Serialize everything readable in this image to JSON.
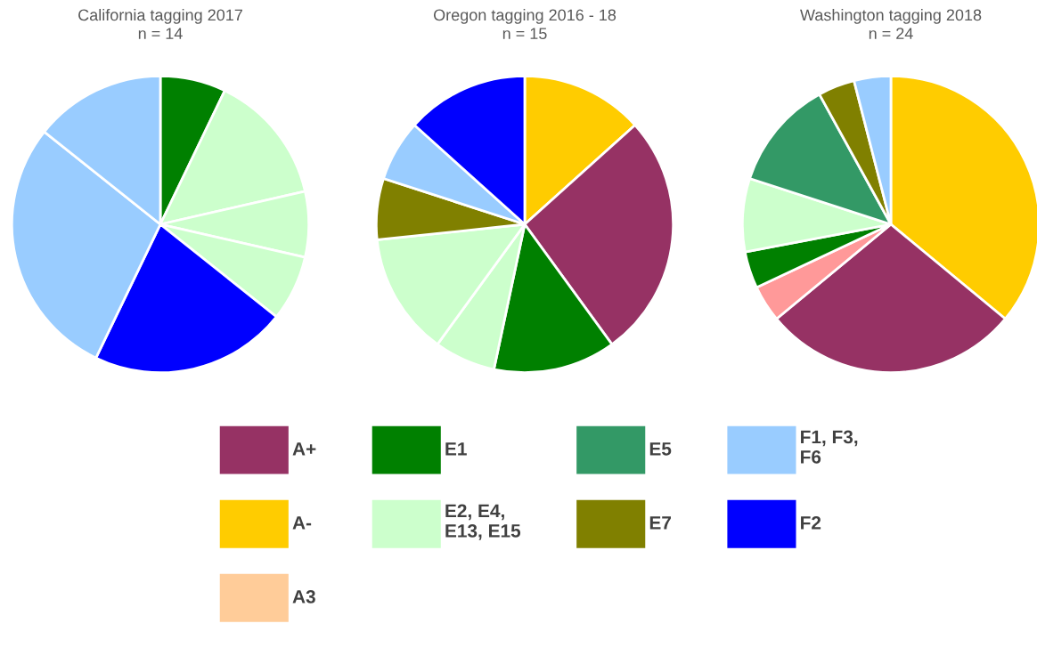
{
  "chart_data": [
    {
      "type": "pie",
      "title": "California tagging 2017",
      "subtitle": "n = 14",
      "categories": [
        null,
        null,
        null,
        null,
        null,
        null,
        null
      ],
      "values": [
        7.14,
        14.29,
        7.14,
        7.14,
        21.43,
        28.57,
        14.29
      ],
      "colors": [
        "#008000",
        "#ccffcc",
        "#ccffcc",
        "#ccffcc",
        "#0000ff",
        "#99ccff",
        "#99ccff"
      ]
    },
    {
      "type": "pie",
      "title": "Oregon tagging 2016 - 18",
      "subtitle": "n = 15",
      "categories": [
        null,
        null,
        null,
        null,
        null,
        null,
        null,
        null
      ],
      "values": [
        13.33,
        26.67,
        13.33,
        6.67,
        13.33,
        6.67,
        6.67,
        13.33
      ],
      "colors": [
        "#ffcc00",
        "#963264",
        "#008000",
        "#ccffcc",
        "#ccffcc",
        "#808000",
        "#99ccff",
        "#0000ff"
      ]
    },
    {
      "type": "pie",
      "title": "Washington tagging 2018",
      "subtitle": "n = 24",
      "categories": [
        null,
        null,
        null,
        null,
        null,
        null,
        null,
        null
      ],
      "values": [
        36,
        28,
        4,
        4,
        8,
        12,
        4,
        4
      ],
      "colors": [
        "#ffcc00",
        "#963264",
        "#ff9999",
        "#008000",
        "#ccffcc",
        "#339966",
        "#808000",
        "#99ccff"
      ]
    },
    {
      "type": "other",
      "categories": [
        "A+",
        "A-",
        "A3",
        "E1",
        "E2, E4, E13, E15",
        "E5",
        "E7",
        "F1, F3, F6",
        "F2"
      ],
      "colors": [
        "#963264",
        "#ffcc00",
        "#ffcc99",
        "#008000",
        "#ccffcc",
        "#339966",
        "#808000",
        "#99ccff",
        "#0000ff"
      ]
    }
  ]
}
